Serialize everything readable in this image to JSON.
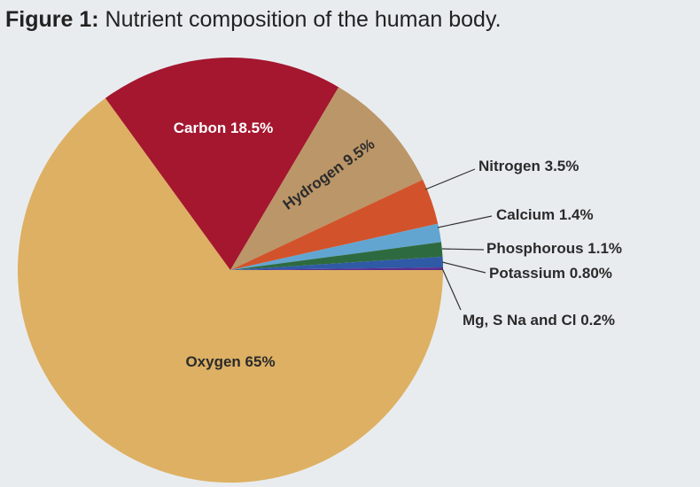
{
  "chart_data": {
    "type": "pie",
    "figure_label": "Figure 1:",
    "title": "Nutrient composition of the human body.",
    "categories": [
      "Oxygen",
      "Carbon",
      "Hydrogen",
      "Nitrogen",
      "Calcium",
      "Phosphorous",
      "Potassium",
      "Mg, S Na and Cl"
    ],
    "values": [
      65,
      18.5,
      9.5,
      3.5,
      1.4,
      1.1,
      0.8,
      0.2
    ],
    "value_labels": [
      "65%",
      "18.5%",
      "9.5%",
      "3.5%",
      "1.4%",
      "1.1%",
      "0.80%",
      "0.2%"
    ],
    "colors": [
      "#ddb063",
      "#a4172f",
      "#bb9668",
      "#d2532b",
      "#62a5d1",
      "#2e6a3f",
      "#2f5aa6",
      "#5b2d8e"
    ]
  }
}
